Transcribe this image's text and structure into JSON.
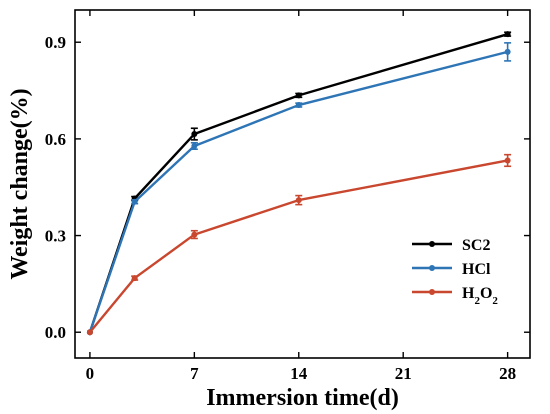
{
  "chart_data": {
    "type": "line",
    "xlabel": "Immersion time(d)",
    "ylabel": "Weight change(%)",
    "xlim": [
      -1,
      29.5
    ],
    "ylim": [
      -0.08,
      1.0
    ],
    "xticks": [
      0,
      7,
      14,
      21,
      28
    ],
    "yticks": [
      0.0,
      0.3,
      0.6,
      0.9
    ],
    "ytick_labels": [
      "0.0",
      "0.3",
      "0.6",
      "0.9"
    ],
    "x": [
      0,
      3,
      7,
      14,
      28
    ],
    "legend_position": "right",
    "series": [
      {
        "name": "SC2",
        "color": "#000000",
        "values": [
          0.0,
          0.415,
          0.615,
          0.735,
          0.925
        ],
        "errors": [
          0.0,
          0.006,
          0.018,
          0.006,
          0.006
        ]
      },
      {
        "name": "HCl",
        "color": "#2e75b6",
        "values": [
          0.0,
          0.405,
          0.578,
          0.705,
          0.87
        ],
        "errors": [
          0.0,
          0.006,
          0.01,
          0.006,
          0.028
        ]
      },
      {
        "name": "H2O2",
        "color": "#c9472e",
        "values": [
          0.0,
          0.168,
          0.303,
          0.41,
          0.533
        ],
        "errors": [
          0.0,
          0.006,
          0.012,
          0.014,
          0.018
        ]
      }
    ]
  }
}
